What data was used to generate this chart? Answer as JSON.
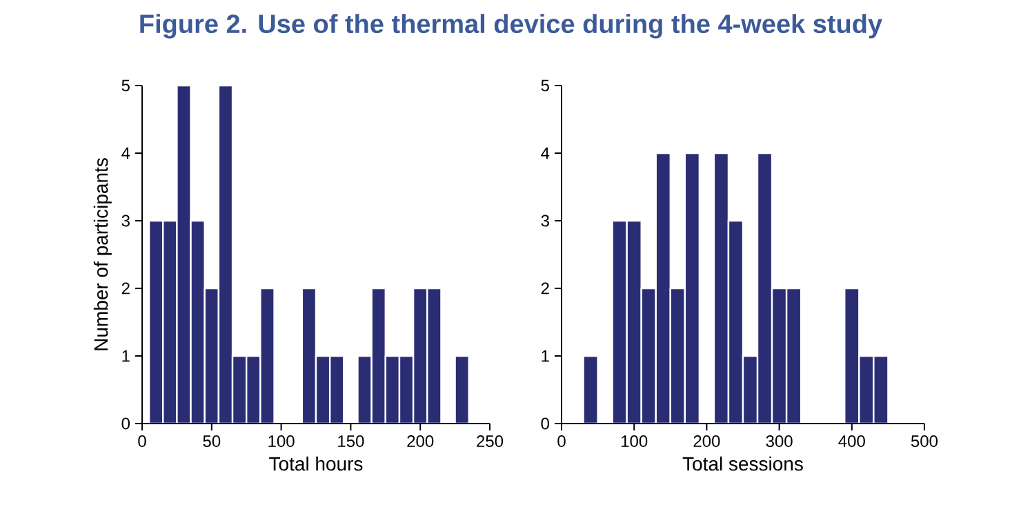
{
  "chart_data": [
    {
      "type": "histogram",
      "title": "Figure 2. Use of the thermal device during the 4-week study",
      "xlabel": "Total hours",
      "ylabel": "Number of participants",
      "bins": [
        5,
        15,
        25,
        35,
        45,
        55,
        65,
        75,
        85,
        95,
        105,
        115,
        125,
        135,
        145,
        155,
        165,
        175,
        185,
        195,
        205,
        215,
        225,
        235
      ],
      "values": [
        3,
        3,
        5,
        3,
        2,
        5,
        1,
        1,
        2,
        0,
        0,
        2,
        1,
        1,
        0,
        1,
        2,
        1,
        1,
        2,
        2,
        0,
        1
      ],
      "color": "#2b2d74",
      "xlim": [
        0,
        250
      ],
      "ylim": [
        0,
        5
      ],
      "xticks": [
        0,
        50,
        100,
        150,
        200,
        250
      ],
      "yticks": [
        0,
        1,
        2,
        3,
        4,
        5
      ]
    },
    {
      "type": "histogram",
      "xlabel": "Total sessions",
      "bins": [
        30,
        50,
        70,
        90,
        110,
        130,
        150,
        170,
        190,
        210,
        230,
        250,
        270,
        290,
        310,
        330,
        350,
        370,
        390,
        410,
        430,
        450
      ],
      "values": [
        1,
        0,
        3,
        3,
        2,
        4,
        2,
        4,
        0,
        4,
        3,
        1,
        4,
        2,
        2,
        0,
        0,
        0,
        2,
        1,
        1
      ],
      "color": "#2b2d74",
      "xlim": [
        0,
        500
      ],
      "ylim": [
        0,
        5
      ],
      "xticks": [
        0,
        100,
        200,
        300,
        400,
        500
      ],
      "yticks": [
        0,
        1,
        2,
        3,
        4,
        5
      ]
    }
  ]
}
